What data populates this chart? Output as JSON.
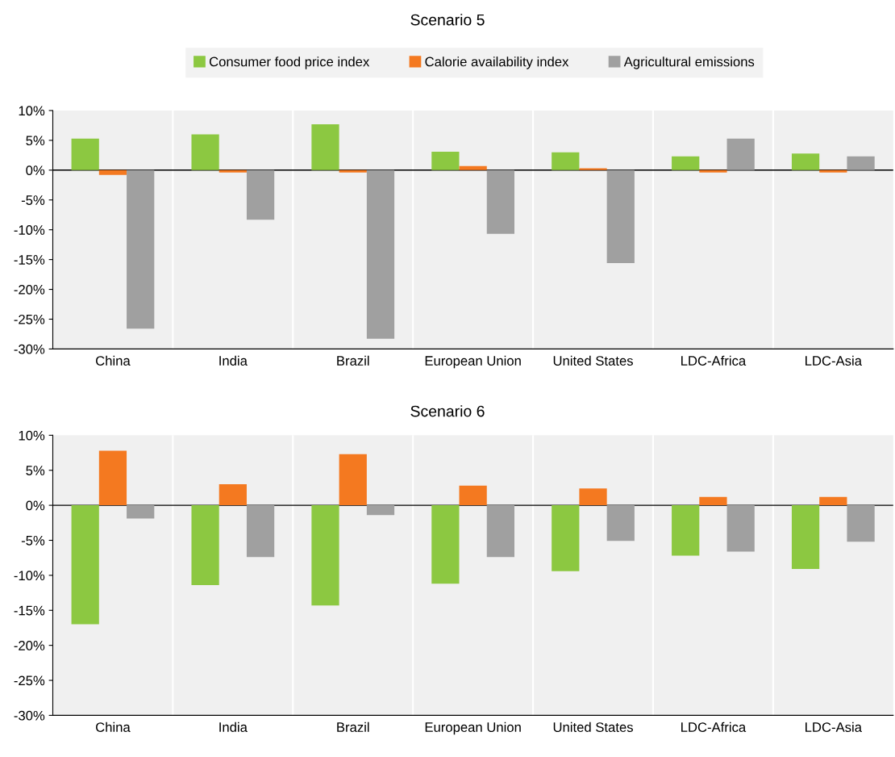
{
  "chart_data": [
    {
      "type": "bar",
      "title": "Scenario 5",
      "categories": [
        "China",
        "India",
        "Brazil",
        "European Union",
        "United States",
        "LDC-Africa",
        "LDC-Asia"
      ],
      "series": [
        {
          "name": "Consumer food price index",
          "color": "#8cc841",
          "values": [
            5.3,
            6.0,
            7.7,
            3.1,
            3.0,
            2.3,
            2.8
          ]
        },
        {
          "name": "Calorie availability index",
          "color": "#f47920",
          "values": [
            -0.8,
            -0.4,
            -0.4,
            0.7,
            0.3,
            -0.4,
            -0.4
          ]
        },
        {
          "name": "Agricultural emissions",
          "color": "#a0a0a0",
          "values": [
            -26.6,
            -8.3,
            -28.3,
            -10.7,
            -15.6,
            5.3,
            2.3
          ]
        }
      ],
      "ylim": [
        -30,
        10
      ],
      "yticks": [
        {
          "value": -30,
          "label": "-30%"
        },
        {
          "value": -25,
          "label": "-25%"
        },
        {
          "value": -20,
          "label": "-20%"
        },
        {
          "value": -15,
          "label": "-15%"
        },
        {
          "value": -10,
          "label": "-10%"
        },
        {
          "value": -5,
          "label": "-5%"
        },
        {
          "value": 0,
          "label": "0%"
        },
        {
          "value": 5,
          "label": "5%"
        },
        {
          "value": 10,
          "label": "10%"
        }
      ],
      "ref_lines": [
        {
          "axis": "y",
          "value": 0,
          "color": "#000000"
        }
      ],
      "grid": "x",
      "legend": "top"
    },
    {
      "type": "bar",
      "title": "Scenario 6",
      "categories": [
        "China",
        "India",
        "Brazil",
        "European Union",
        "United States",
        "LDC-Africa",
        "LDC-Asia"
      ],
      "series": [
        {
          "color": "#8cc841",
          "values": [
            -17.0,
            -11.4,
            -14.3,
            -11.2,
            -9.4,
            -7.2,
            -9.1
          ]
        },
        {
          "color": "#f47920",
          "values": [
            7.8,
            3.0,
            7.3,
            2.8,
            2.4,
            1.2,
            1.2
          ]
        },
        {
          "color": "#a0a0a0",
          "values": [
            -1.9,
            -7.4,
            -1.4,
            -7.4,
            -5.1,
            -6.6,
            -5.2
          ]
        }
      ],
      "ylim": [
        -30,
        10
      ],
      "yticks": [
        {
          "value": -30,
          "label": "-30%"
        },
        {
          "value": -25,
          "label": "-25%"
        },
        {
          "value": -20,
          "label": "-20%"
        },
        {
          "value": -15,
          "label": "-15%"
        },
        {
          "value": -10,
          "label": "-10%"
        },
        {
          "value": -5,
          "label": "-5%"
        },
        {
          "value": 0,
          "label": "0%"
        },
        {
          "value": 5,
          "label": "5%"
        },
        {
          "value": 10,
          "label": "10%"
        }
      ],
      "ref_lines": [
        {
          "axis": "y",
          "value": 0,
          "color": "#000000"
        }
      ],
      "grid": "x"
    }
  ]
}
